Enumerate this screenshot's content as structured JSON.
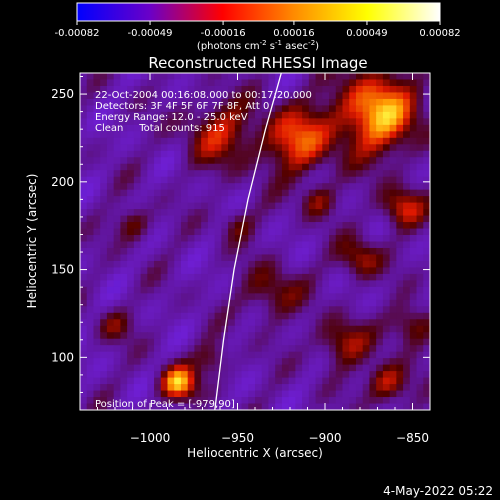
{
  "figure": {
    "title": "Reconstructed RHESSI Image",
    "timestamp": "4-May-2022 05:22"
  },
  "colorbar": {
    "ticks": [
      "-0.00082",
      "-0.00049",
      "-0.00016",
      "0.00016",
      "0.00049",
      "0.00082"
    ],
    "units_prefix": "(photons cm",
    "units_exp1": "-2",
    "units_mid1": " s",
    "units_exp2": "-1",
    "units_mid2": " asec",
    "units_exp3": "-2",
    "units_suffix": ")"
  },
  "annotations": {
    "line1": "22-Oct-2004 00:16:08.000 to 00:17:20.000",
    "line2": "Detectors: 3F 4F 5F 6F 7F 8F, Att 0",
    "line3": "Energy Range: 12.0 - 25.0 keV",
    "line4": "Clean     Total counts: 915",
    "peak": "Position of Peak = [-979,90]"
  },
  "chart_data": {
    "type": "heatmap",
    "title": "Reconstructed RHESSI Image",
    "xlabel": "Heliocentric X (arcsec)",
    "ylabel": "Heliocentric Y (arcsec)",
    "xlim": [
      -1040,
      -840
    ],
    "ylim": [
      70,
      262
    ],
    "xticks": [
      -1000,
      -950,
      -900,
      -850
    ],
    "yticks": [
      100,
      150,
      200,
      250
    ],
    "xtick_labels": [
      "−1000",
      "−950",
      "−900",
      "−850"
    ],
    "ytick_labels": [
      "100",
      "150",
      "200",
      "250"
    ],
    "colorbar_range": [
      -0.00082,
      0.00082
    ],
    "colormap": [
      "#0000ff",
      "#6a00c8",
      "#ff0000",
      "#ff8c00",
      "#ffff00",
      "#ffffff"
    ],
    "peak_position": [
      -979,
      90
    ],
    "limb_curve": [
      [
        -963,
        70
      ],
      [
        -958,
        110
      ],
      [
        -952,
        150
      ],
      [
        -944,
        190
      ],
      [
        -934,
        230
      ],
      [
        -925,
        262
      ]
    ],
    "grid": false
  }
}
